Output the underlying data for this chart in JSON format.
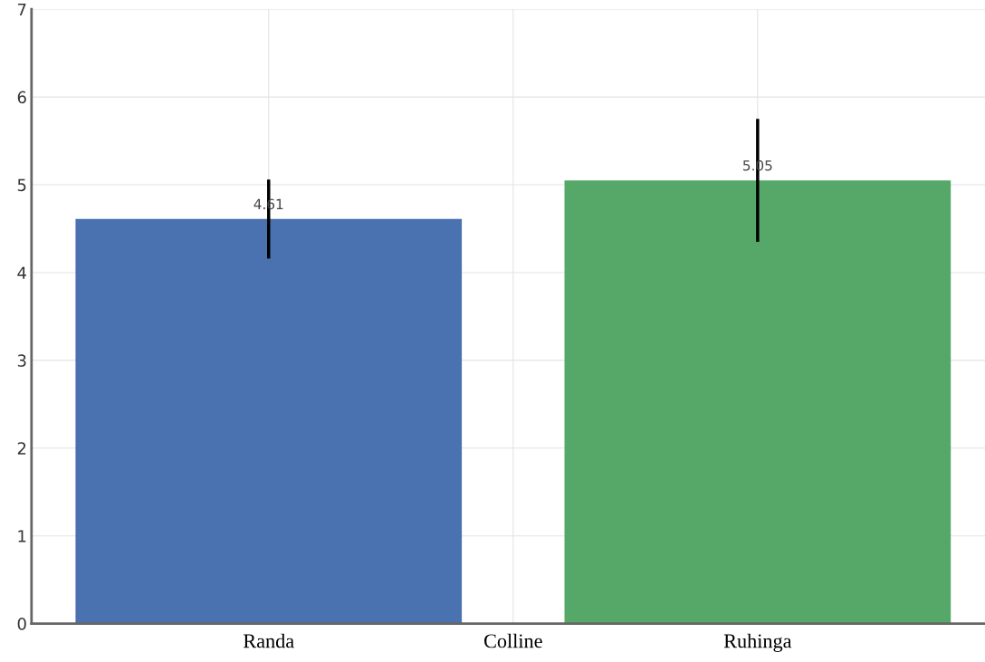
{
  "chart_data": {
    "type": "bar",
    "categories": [
      "Randa",
      "Colline",
      "Ruhinga"
    ],
    "values": [
      4.61,
      null,
      5.05
    ],
    "colors": [
      "#4a72b0",
      "#7f7f7f",
      "#55a868"
    ],
    "errors": [
      0.45,
      null,
      0.7
    ],
    "data_labels": true,
    "ylim": [
      0,
      7
    ],
    "yticks": [
      0,
      1,
      2,
      3,
      4,
      5,
      6,
      7
    ],
    "grid": true
  }
}
